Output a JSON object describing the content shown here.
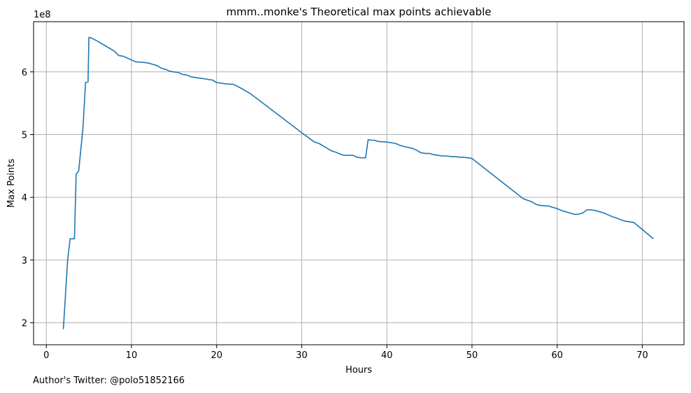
{
  "chart_data": {
    "type": "line",
    "title": "mmm..monke's Theoretical max points achievable",
    "xlabel": "Hours",
    "ylabel": "Max Points",
    "y_offset_label": "1e8",
    "xlim": [
      -1.5,
      74.9
    ],
    "ylim": [
      1.65,
      6.8
    ],
    "y_scale_note": "values in units of 1e8",
    "x_ticks": [
      0,
      10,
      20,
      30,
      40,
      50,
      60,
      70
    ],
    "y_ticks": [
      2,
      3,
      4,
      5,
      6
    ],
    "grid": true,
    "line_color": "#1f77b4",
    "series": [
      {
        "x": [
          2.0,
          2.5,
          2.8,
          3.3,
          3.5,
          3.8,
          4.3,
          4.6,
          4.9,
          5.0,
          5.3,
          6.0,
          7.0,
          8.0,
          8.5,
          9.0,
          9.5,
          10.0,
          10.5,
          11.5,
          12.0,
          12.5,
          13.0,
          13.5,
          14.0,
          14.5,
          15.0,
          15.5,
          16.0,
          16.5,
          17.0,
          17.5,
          18.0,
          19.0,
          19.5,
          20.0,
          21.0,
          22.0,
          23.0,
          24.0,
          30.0,
          31.0,
          31.5,
          32.0,
          32.5,
          33.0,
          33.5,
          34.0,
          34.5,
          35.0,
          36.0,
          36.5,
          37.0,
          37.5,
          37.8,
          38.2,
          38.5,
          39.0,
          40.0,
          41.0,
          41.5,
          42.0,
          43.0,
          43.5,
          44.0,
          44.5,
          45.0,
          45.5,
          46.0,
          46.5,
          47.0,
          47.5,
          48.0,
          48.5,
          49.0,
          49.5,
          50.0,
          56.0,
          57.0,
          57.5,
          58.0,
          59.0,
          59.5,
          60.0,
          60.5,
          61.0,
          61.5,
          62.0,
          62.5,
          63.0,
          63.5,
          64.0,
          64.5,
          65.0,
          65.5,
          66.0,
          66.5,
          67.0,
          67.5,
          68.0,
          69.0,
          71.3
        ],
        "y": [
          1.9,
          3.0,
          3.34,
          3.34,
          4.37,
          4.42,
          5.1,
          5.83,
          5.84,
          6.55,
          6.54,
          6.49,
          6.41,
          6.33,
          6.26,
          6.25,
          6.22,
          6.19,
          6.16,
          6.15,
          6.14,
          6.12,
          6.1,
          6.06,
          6.04,
          6.01,
          6.0,
          5.99,
          5.96,
          5.95,
          5.92,
          5.91,
          5.9,
          5.88,
          5.87,
          5.83,
          5.81,
          5.8,
          5.73,
          5.65,
          5.03,
          4.93,
          4.88,
          4.86,
          4.82,
          4.78,
          4.74,
          4.72,
          4.69,
          4.67,
          4.67,
          4.64,
          4.63,
          4.63,
          4.92,
          4.91,
          4.91,
          4.89,
          4.88,
          4.86,
          4.83,
          4.81,
          4.78,
          4.75,
          4.71,
          4.7,
          4.7,
          4.68,
          4.67,
          4.66,
          4.66,
          4.65,
          4.65,
          4.64,
          4.64,
          4.63,
          4.62,
          3.98,
          3.93,
          3.89,
          3.87,
          3.86,
          3.84,
          3.82,
          3.79,
          3.77,
          3.75,
          3.73,
          3.73,
          3.75,
          3.8,
          3.8,
          3.79,
          3.77,
          3.75,
          3.72,
          3.69,
          3.67,
          3.64,
          3.62,
          3.6,
          3.34
        ]
      }
    ]
  },
  "footnote": "Author's Twitter: @polo51852166"
}
